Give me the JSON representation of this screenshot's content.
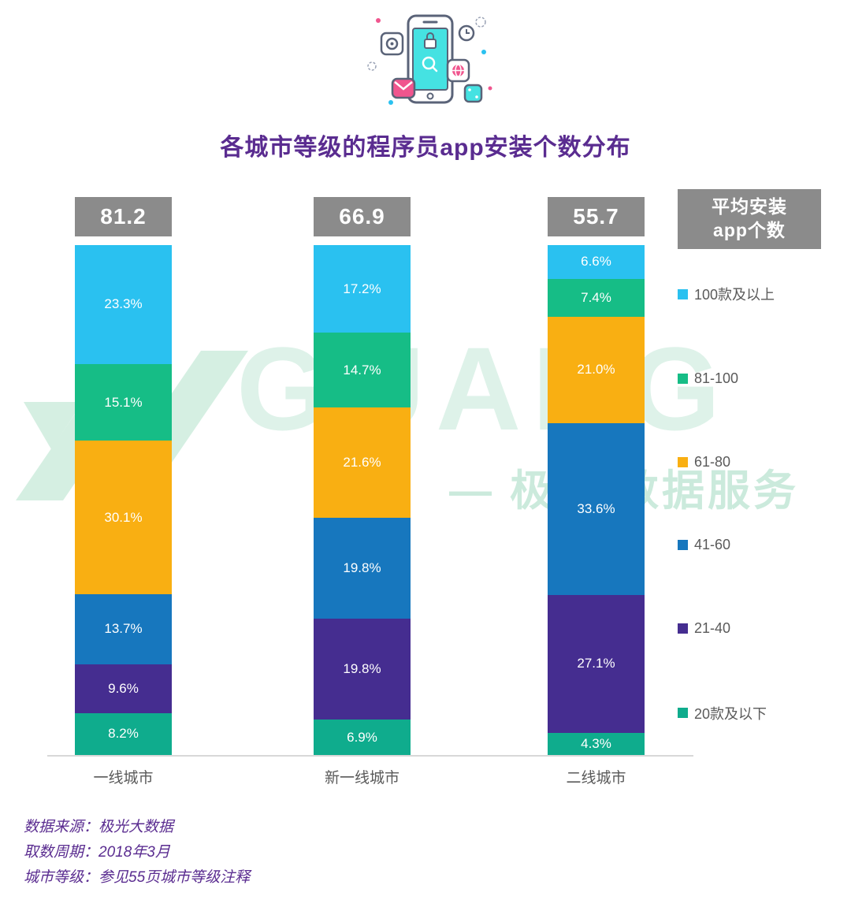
{
  "header": {
    "title": "各城市等级的程序员app安装个数分布",
    "illustration": "phone-with-app-icons"
  },
  "chart_data": {
    "type": "bar",
    "subtype": "stacked-100-percent-column",
    "title": "各城市等级的程序员app安装个数分布",
    "categories": [
      "一线城市",
      "新一线城市",
      "二线城市"
    ],
    "totals": [
      "81.2",
      "66.9",
      "55.7"
    ],
    "totals_label_color": "#8B8B8B",
    "legend_title_lines": [
      "平均安装",
      "app个数"
    ],
    "legend_position": "right",
    "value_suffix": "%",
    "series": [
      {
        "name": "100款及以上",
        "color": "#2AC1F0",
        "values": [
          23.3,
          17.2,
          6.6
        ]
      },
      {
        "name": "81-100",
        "color": "#16BD86",
        "values": [
          15.1,
          14.7,
          7.4
        ]
      },
      {
        "name": "61-80",
        "color": "#F9AF12",
        "values": [
          30.1,
          21.6,
          21.0
        ]
      },
      {
        "name": "41-60",
        "color": "#1777BE",
        "values": [
          13.7,
          19.8,
          33.6
        ]
      },
      {
        "name": "21-40",
        "color": "#452D90",
        "values": [
          9.6,
          19.8,
          27.1
        ]
      },
      {
        "name": "20款及以下",
        "color": "#0FAC8D",
        "values": [
          8.2,
          6.9,
          4.3
        ]
      }
    ]
  },
  "watermark": {
    "brand": "GUANG",
    "service": "— 极光 数据服务"
  },
  "footer": {
    "lines": [
      "数据来源：极光大数据",
      "取数周期：2018年3月",
      "城市等级：参见55页城市等级注释"
    ]
  },
  "colors": {
    "title_text": "#5A2C90",
    "footer_text": "#5A2C90",
    "axis_label": "#5A5A5A",
    "gray_box": "#8B8B8B",
    "watermark_green": "#D9F0E6"
  }
}
